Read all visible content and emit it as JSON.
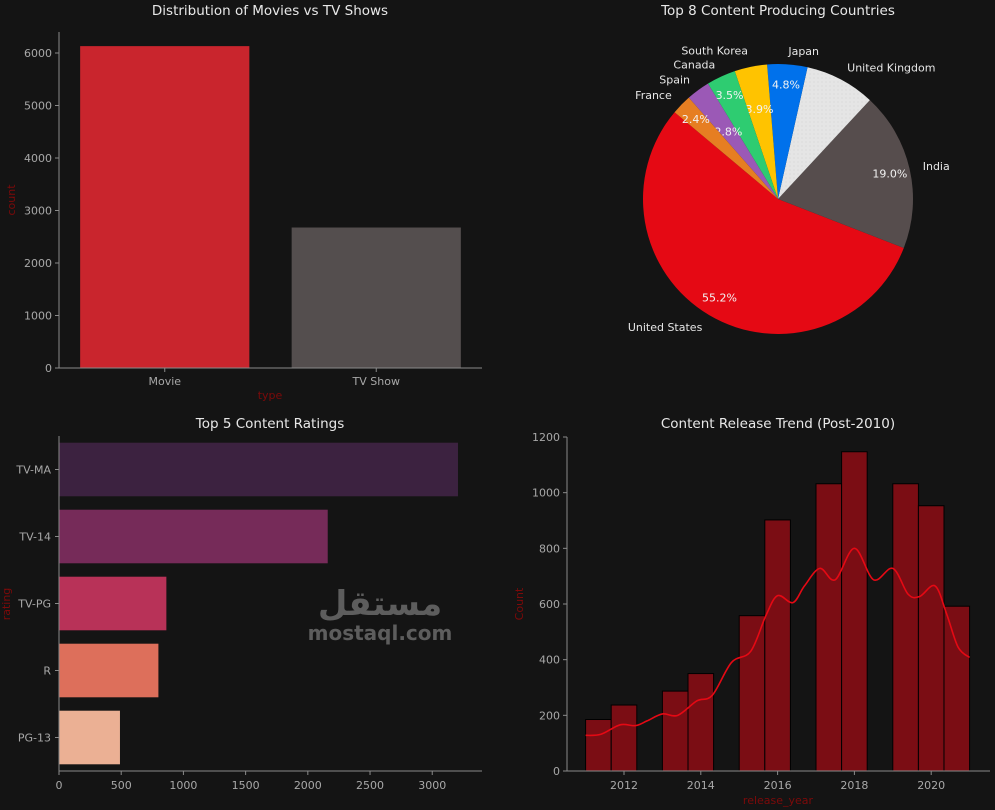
{
  "chart_data": [
    {
      "type": "bar",
      "title": "Distribution of Movies vs TV Shows",
      "xlabel": "type",
      "ylabel": "count",
      "categories": [
        "Movie",
        "TV Show"
      ],
      "values": [
        6131,
        2676
      ],
      "colors": [
        "#c9252d",
        "#544e4e"
      ],
      "ylim": [
        0,
        6400
      ],
      "yticks": [
        0,
        1000,
        2000,
        3000,
        4000,
        5000,
        6000
      ],
      "grid": false
    },
    {
      "type": "pie",
      "title": "Top 8 Content Producing Countries",
      "categories": [
        "United States",
        "India",
        "United Kingdom",
        "Japan",
        "South Korea",
        "Canada",
        "Spain",
        "France"
      ],
      "values": [
        55.2,
        19.0,
        8.4,
        4.8,
        3.9,
        3.5,
        2.8,
        2.4
      ],
      "pct_labels": [
        "55.2%",
        "19.0%",
        "",
        "4.8%",
        "3.9%",
        "3.5%",
        "2.8%",
        "2.4%"
      ],
      "colors": [
        "#e50914",
        "#564d4d",
        "#e5e5e5",
        "#0071eb",
        "#ffc300",
        "#2ecc71",
        "#9b59b6",
        "#e67e22"
      ]
    },
    {
      "type": "bar",
      "orientation": "horizontal",
      "title": "Top 5 Content Ratings",
      "xlabel": "",
      "ylabel": "rating",
      "categories": [
        "TV-MA",
        "TV-14",
        "TV-PG",
        "R",
        "PG-13"
      ],
      "values": [
        3207,
        2160,
        863,
        799,
        490
      ],
      "colors": [
        "#3c2240",
        "#762b59",
        "#b83258",
        "#dd6f5b",
        "#ebb094"
      ],
      "xlim": [
        0,
        3400
      ],
      "xticks": [
        0,
        500,
        1000,
        1500,
        2000,
        2500,
        3000
      ],
      "grid": false
    },
    {
      "type": "bar",
      "subtype": "histogram",
      "title": "Content Release Trend (Post-2010)",
      "xlabel": "release_year",
      "ylabel": "Count",
      "bin_edges": [
        2011,
        2011.667,
        2012.333,
        2013,
        2013.667,
        2014.333,
        2015,
        2015.667,
        2016.333,
        2017,
        2017.667,
        2018.333,
        2019,
        2019.667,
        2020.333,
        2021
      ],
      "values": [
        185,
        237,
        0,
        287,
        350,
        0,
        558,
        902,
        0,
        1032,
        1147,
        0,
        1032,
        953,
        592
      ],
      "kde": {
        "x": [
          2011.0,
          2011.4,
          2011.9,
          2012.3,
          2012.6,
          2013.0,
          2013.4,
          2013.9,
          2014.3,
          2014.8,
          2015.3,
          2015.7,
          2016.0,
          2016.4,
          2016.7,
          2017.1,
          2017.5,
          2018.0,
          2018.5,
          2019.0,
          2019.4,
          2019.7,
          2020.1,
          2020.4,
          2020.7,
          2021.0
        ],
        "y": [
          128,
          132,
          166,
          163,
          180,
          205,
          200,
          252,
          272,
          390,
          430,
          560,
          630,
          605,
          665,
          728,
          687,
          800,
          687,
          728,
          635,
          627,
          665,
          565,
          445,
          408
        ]
      },
      "bar_color": "#7b0d14",
      "line_color": "#e50914",
      "xlim": [
        2010.5,
        2021.5
      ],
      "ylim": [
        0,
        1200
      ],
      "xticks": [
        2012,
        2014,
        2016,
        2018,
        2020
      ],
      "yticks": [
        0,
        200,
        400,
        600,
        800,
        1000,
        1200
      ],
      "grid": false
    }
  ],
  "watermark": {
    "arabic": "مستقل",
    "latin": "mostaql.com"
  }
}
